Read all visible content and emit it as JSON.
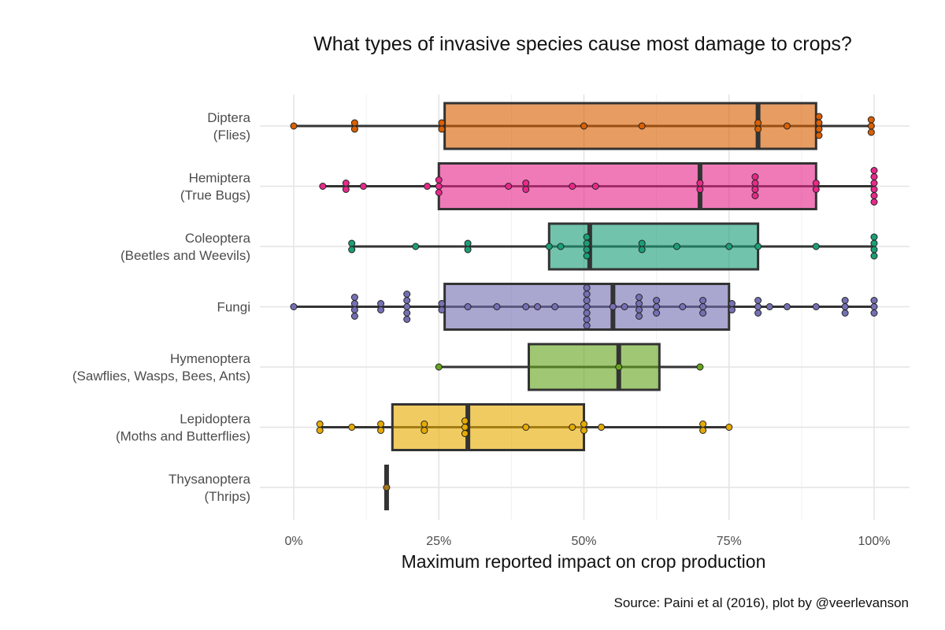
{
  "title": "What types of invasive species cause most damage to crops?",
  "source": "Source: Paini et al (2016), plot by @veerlevanson",
  "chart_data": {
    "type": "boxplot",
    "title": "What types of invasive species cause most damage to crops?",
    "xlabel": "Maximum reported impact on crop production",
    "ylabel": "",
    "xlim": [
      0,
      100
    ],
    "x_ticks": [
      0,
      25,
      50,
      75,
      100
    ],
    "x_tick_labels": [
      "0%",
      "25%",
      "50%",
      "75%",
      "100%"
    ],
    "grid": true,
    "legend": "none",
    "categories": [
      {
        "label": [
          "Diptera",
          "(Flies)"
        ],
        "color": "#d95f02",
        "box": {
          "min": 0,
          "q1": 26,
          "median": 80,
          "q3": 90,
          "max": 100
        },
        "points": [
          0,
          10.5,
          10.5,
          25.5,
          25.5,
          50,
          60,
          80,
          80,
          85,
          90.5,
          90.5,
          90.5,
          90.5,
          99.5,
          99.5,
          99.5
        ]
      },
      {
        "label": [
          "Hemiptera",
          "(True Bugs)"
        ],
        "color": "#e7298a",
        "box": {
          "min": 5,
          "q1": 25,
          "median": 70,
          "q3": 90,
          "max": 100
        },
        "points": [
          5,
          9,
          9,
          12,
          23,
          25,
          25,
          25,
          37,
          40,
          40,
          48,
          52,
          70,
          70,
          79.5,
          79.5,
          79.5,
          79.5,
          90,
          90,
          100,
          100,
          100,
          100,
          100,
          100
        ]
      },
      {
        "label": [
          "Coleoptera",
          "(Beetles and Weevils)"
        ],
        "color": "#1b9e77",
        "box": {
          "min": 10,
          "q1": 44,
          "median": 51,
          "q3": 80,
          "max": 100
        },
        "points": [
          10,
          10,
          21,
          30,
          30,
          44,
          46,
          50.5,
          50.5,
          50.5,
          50.5,
          60,
          60,
          66,
          75,
          80,
          90,
          100,
          100,
          100,
          100
        ]
      },
      {
        "label": [
          "Fungi"
        ],
        "color": "#7570b3",
        "box": {
          "min": 0,
          "q1": 26,
          "median": 55,
          "q3": 75,
          "max": 100
        },
        "points": [
          0,
          10.5,
          10.5,
          10.5,
          10.5,
          15,
          15,
          19.5,
          19.5,
          19.5,
          19.5,
          19.5,
          25.5,
          25.5,
          30,
          35,
          40,
          42,
          45,
          50.5,
          50.5,
          50.5,
          50.5,
          50.5,
          50.5,
          50.5,
          55,
          57,
          59.5,
          59.5,
          59.5,
          59.5,
          62.5,
          62.5,
          62.5,
          67,
          70.5,
          70.5,
          70.5,
          75.5,
          75.5,
          80,
          80,
          80,
          82,
          85,
          90,
          95,
          95,
          95,
          100,
          100,
          100
        ]
      },
      {
        "label": [
          "Hymenoptera",
          "(Sawflies, Wasps, Bees, Ants)"
        ],
        "color": "#66a61e",
        "box": {
          "min": 25,
          "q1": 40.5,
          "median": 56,
          "q3": 63,
          "max": 70
        },
        "points": [
          25,
          56,
          70
        ]
      },
      {
        "label": [
          "Lepidoptera",
          "(Moths and Butterflies)"
        ],
        "color": "#e6ab02",
        "box": {
          "min": 4.5,
          "q1": 17,
          "median": 30,
          "q3": 50,
          "max": 75
        },
        "points": [
          4.5,
          4.5,
          10,
          15,
          15,
          22.5,
          22.5,
          29.5,
          29.5,
          29.5,
          40,
          48,
          50,
          50,
          53,
          70.5,
          70.5,
          75
        ]
      },
      {
        "label": [
          "Thysanoptera",
          "(Thrips)"
        ],
        "color": "#a6761d",
        "box": {
          "min": 16,
          "q1": 16,
          "median": 16,
          "q3": 16,
          "max": 16
        },
        "points": [
          16
        ]
      }
    ]
  }
}
